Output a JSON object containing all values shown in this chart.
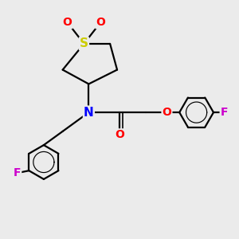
{
  "bg_color": "#ebebeb",
  "atom_colors": {
    "S": "#cccc00",
    "O": "#ff0000",
    "N": "#0000ff",
    "F": "#cc00cc",
    "C": "#000000"
  },
  "bond_color": "#000000",
  "bond_width": 1.6,
  "figsize": [
    3.0,
    3.0
  ],
  "dpi": 100
}
